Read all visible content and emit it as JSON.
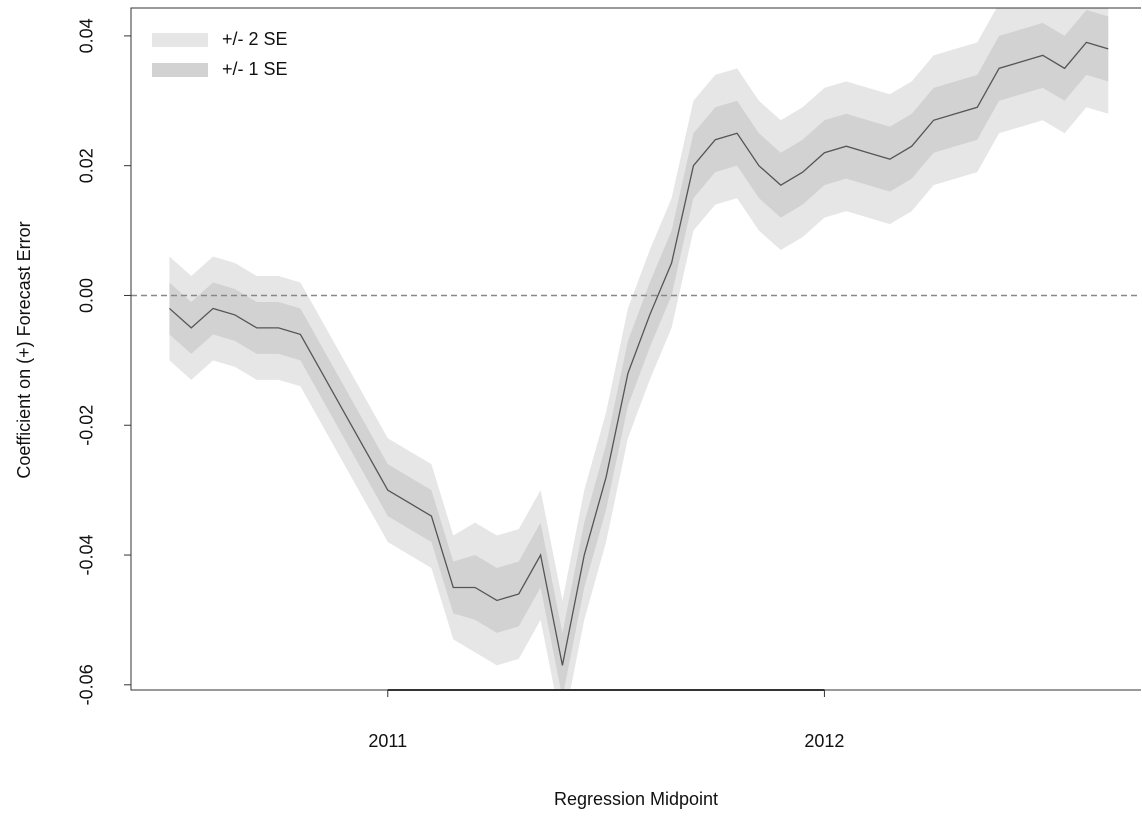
{
  "chart_data": {
    "type": "band-line",
    "x_label": "Regression Midpoint",
    "y_label": "Coefficient on (+) Forecast Error",
    "x": [
      2010.5,
      2010.55,
      2010.6,
      2010.65,
      2010.7,
      2010.75,
      2010.8,
      2010.85,
      2010.9,
      2010.95,
      2011.0,
      2011.05,
      2011.1,
      2011.15,
      2011.2,
      2011.25,
      2011.3,
      2011.35,
      2011.4,
      2011.45,
      2011.5,
      2011.55,
      2011.6,
      2011.65,
      2011.7,
      2011.75,
      2011.8,
      2011.85,
      2011.9,
      2011.95,
      2012.0,
      2012.05,
      2012.1,
      2012.15,
      2012.2,
      2012.25,
      2012.3,
      2012.35,
      2012.4,
      2012.45,
      2012.5,
      2012.55,
      2012.6,
      2012.65
    ],
    "values": [
      -0.002,
      -0.005,
      -0.002,
      -0.003,
      -0.005,
      -0.005,
      -0.006,
      -0.012,
      -0.018,
      -0.024,
      -0.03,
      -0.032,
      -0.034,
      -0.045,
      -0.045,
      -0.047,
      -0.046,
      -0.04,
      -0.057,
      -0.04,
      -0.028,
      -0.012,
      -0.003,
      0.005,
      0.02,
      0.024,
      0.025,
      0.02,
      0.017,
      0.019,
      0.022,
      0.023,
      0.022,
      0.021,
      0.023,
      0.027,
      0.028,
      0.029,
      0.035,
      0.036,
      0.037,
      0.035,
      0.039,
      0.038
    ],
    "color": "#555555",
    "bands": [
      {
        "name": "+/- 2 SE",
        "color": "#e6e6e6",
        "upper": [
          0.006,
          0.003,
          0.006,
          0.005,
          0.003,
          0.003,
          0.002,
          -0.004,
          -0.01,
          -0.016,
          -0.022,
          -0.024,
          -0.026,
          -0.037,
          -0.035,
          -0.037,
          -0.036,
          -0.03,
          -0.047,
          -0.03,
          -0.018,
          -0.002,
          0.007,
          0.015,
          0.03,
          0.034,
          0.035,
          0.03,
          0.027,
          0.029,
          0.032,
          0.033,
          0.032,
          0.031,
          0.033,
          0.037,
          0.038,
          0.039,
          0.045,
          0.046,
          0.047,
          0.045,
          0.049,
          0.048
        ],
        "lower": [
          -0.01,
          -0.013,
          -0.01,
          -0.011,
          -0.013,
          -0.013,
          -0.014,
          -0.02,
          -0.026,
          -0.032,
          -0.038,
          -0.04,
          -0.042,
          -0.053,
          -0.055,
          -0.057,
          -0.056,
          -0.05,
          -0.067,
          -0.05,
          -0.038,
          -0.022,
          -0.013,
          -0.005,
          0.01,
          0.014,
          0.015,
          0.01,
          0.007,
          0.009,
          0.012,
          0.013,
          0.012,
          0.011,
          0.013,
          0.017,
          0.018,
          0.019,
          0.025,
          0.026,
          0.027,
          0.025,
          0.029,
          0.028
        ]
      },
      {
        "name": "+/- 1 SE",
        "color": "#d2d2d2",
        "upper": [
          0.002,
          -0.001,
          0.002,
          0.001,
          -0.001,
          -0.001,
          -0.002,
          -0.008,
          -0.014,
          -0.02,
          -0.026,
          -0.028,
          -0.03,
          -0.041,
          -0.04,
          -0.042,
          -0.041,
          -0.035,
          -0.052,
          -0.035,
          -0.023,
          -0.007,
          0.002,
          0.01,
          0.025,
          0.029,
          0.03,
          0.025,
          0.022,
          0.024,
          0.027,
          0.028,
          0.027,
          0.026,
          0.028,
          0.032,
          0.033,
          0.034,
          0.04,
          0.041,
          0.042,
          0.04,
          0.044,
          0.043
        ],
        "lower": [
          -0.006,
          -0.009,
          -0.006,
          -0.007,
          -0.009,
          -0.009,
          -0.01,
          -0.016,
          -0.022,
          -0.028,
          -0.034,
          -0.036,
          -0.038,
          -0.049,
          -0.05,
          -0.052,
          -0.051,
          -0.045,
          -0.062,
          -0.045,
          -0.033,
          -0.017,
          -0.008,
          0.0,
          0.015,
          0.019,
          0.02,
          0.015,
          0.012,
          0.014,
          0.017,
          0.018,
          0.017,
          0.016,
          0.018,
          0.022,
          0.023,
          0.024,
          0.03,
          0.031,
          0.032,
          0.03,
          0.034,
          0.033
        ]
      }
    ],
    "reference_line": 0,
    "xlim": [
      2010.412,
      2012.725
    ],
    "xticks": [
      2011,
      2012
    ],
    "ylim": [
      -0.0608,
      0.0443
    ],
    "yticks": [
      -0.06,
      -0.04,
      -0.02,
      {
        "value": 0,
        "label": "0.00"
      },
      0.02,
      0.04
    ],
    "legend": "top-left"
  }
}
